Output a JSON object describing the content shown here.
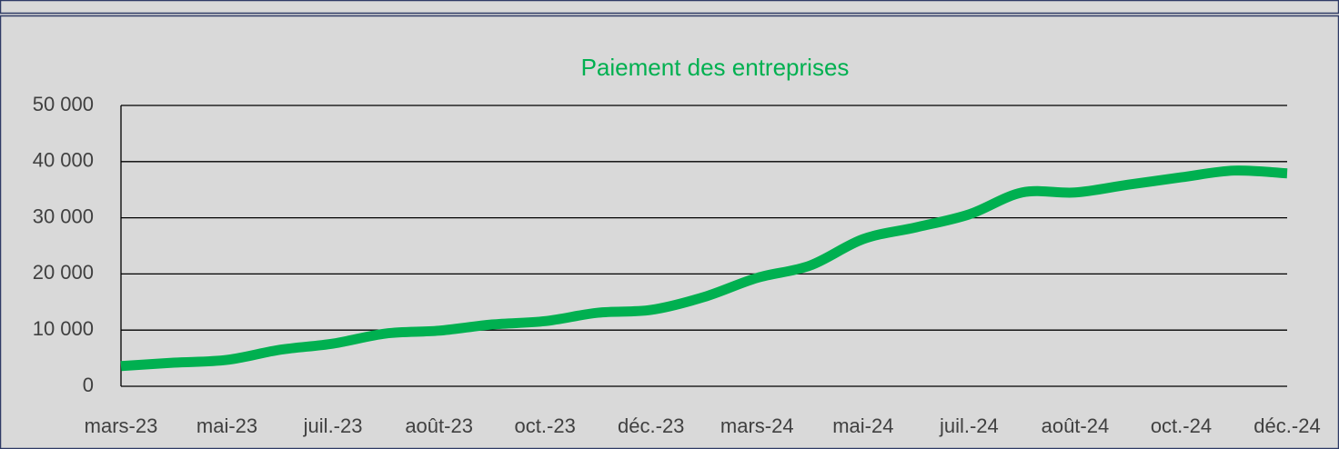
{
  "chart_data": {
    "type": "line",
    "title": "Paiement des entreprises",
    "categories": [
      "mars-23",
      null,
      "mai-23",
      null,
      "juil.-23",
      null,
      "août-23",
      null,
      "oct.-23",
      null,
      "déc.-23",
      null,
      "mars-24",
      null,
      "mai-24",
      null,
      "juil.-24",
      null,
      "août-24",
      null,
      "oct.-24",
      null,
      "déc.-24"
    ],
    "series": [
      {
        "name": "Paiement des entreprises",
        "color": "#00b050",
        "values": [
          3600,
          4200,
          4700,
          6500,
          7600,
          9400,
          9900,
          11000,
          11600,
          13100,
          13600,
          15900,
          19300,
          21500,
          26200,
          28300,
          30600,
          34500,
          34500,
          35900,
          37200,
          38400,
          37900
        ]
      }
    ],
    "ylim": [
      0,
      50000
    ],
    "yticks": [
      0,
      {
        "value": 10000,
        "label": "10 000"
      },
      {
        "value": 20000,
        "label": "20 000"
      },
      {
        "value": 30000,
        "label": "30 000"
      },
      {
        "value": 40000,
        "label": "40 000"
      },
      {
        "value": 50000,
        "label": "50 000"
      }
    ],
    "grid": true
  }
}
